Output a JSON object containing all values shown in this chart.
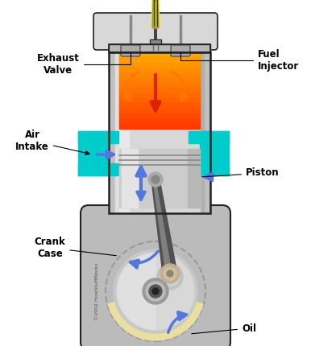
{
  "bg_color": "#ffffff",
  "labels": {
    "exhaust_valve": "Exhaust\nValve",
    "fuel_injector": "Fuel\nInjector",
    "air_intake": "Air\nIntake",
    "piston": "Piston",
    "crank_case": "Crank\nCase",
    "oil": "Oil",
    "copyright": "©2002 HowStuffWorks"
  },
  "colors": {
    "combustion_orange": "#ff6600",
    "combustion_orange2": "#ff8800",
    "combustion_yellow": "#ffcc00",
    "air_intake_cyan": "#00cccc",
    "arrow_blue": "#5577dd",
    "arrow_orange": "#ff7700",
    "arrow_red": "#dd2200",
    "crankcase_bg": "#aaaaaa",
    "oil_color": "#e8dfa0",
    "crank_silver": "#d4d4d4",
    "crank_mid": "#b8b8b8",
    "outline": "#222222",
    "injector_yellow": "#ffee00",
    "injector_body": "#777777",
    "valve_gray": "#999999",
    "text_color": "#000000",
    "head_gray": "#cccccc",
    "cylinder_silver": "#d0d0d0",
    "cylinder_wall": "#b8b8b8",
    "dark_line": "#444444"
  },
  "figsize": [
    3.86,
    4.3
  ],
  "dpi": 100
}
